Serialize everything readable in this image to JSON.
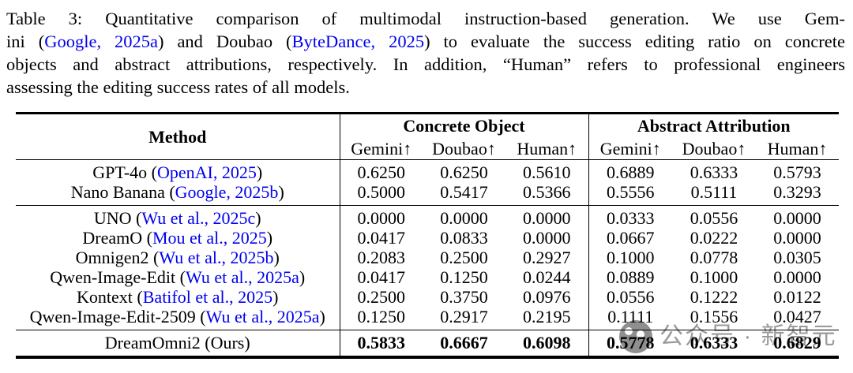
{
  "caption": {
    "lines": [
      {
        "runs": [
          {
            "t": "Table 3:  Quantitative comparison of multimodal instruction-based generation.  We use Gem-"
          }
        ]
      },
      {
        "runs": [
          {
            "t": "ini ("
          },
          {
            "t": "Google, 2025a",
            "link": true
          },
          {
            "t": ") and Doubao ("
          },
          {
            "t": "ByteDance, 2025",
            "link": true
          },
          {
            "t": ") to evaluate the success editing ratio on concrete"
          }
        ]
      },
      {
        "runs": [
          {
            "t": "objects and abstract attributions, respectively. In addition, “Human” refers to professional engineers"
          }
        ]
      },
      {
        "runs": [
          {
            "t": "assessing the editing success rates of all models."
          }
        ]
      }
    ]
  },
  "table": {
    "corner_header": "Method",
    "group_headers": [
      "Concrete Object",
      "Abstract Attribution"
    ],
    "metric_headers": [
      "Gemini↑",
      "Doubao↑",
      "Human↑",
      "Gemini↑",
      "Doubao↑",
      "Human↑"
    ],
    "sections": [
      {
        "rows": [
          {
            "method": {
              "pre": "GPT-4o (",
              "cite": "OpenAI, 2025",
              "post": ")"
            },
            "values": [
              "0.6250",
              "0.6250",
              "0.5610",
              "0.6889",
              "0.6333",
              "0.5793"
            ],
            "bold": false
          },
          {
            "method": {
              "pre": "Nano Banana (",
              "cite": "Google, 2025b",
              "post": ")"
            },
            "values": [
              "0.5000",
              "0.5417",
              "0.5366",
              "0.5556",
              "0.5111",
              "0.3293"
            ],
            "bold": false
          }
        ]
      },
      {
        "rows": [
          {
            "method": {
              "pre": "UNO (",
              "cite": "Wu et al., 2025c",
              "post": ")"
            },
            "values": [
              "0.0000",
              "0.0000",
              "0.0000",
              "0.0333",
              "0.0556",
              "0.0000"
            ],
            "bold": false
          },
          {
            "method": {
              "pre": "DreamO (",
              "cite": "Mou et al., 2025",
              "post": ")"
            },
            "values": [
              "0.0417",
              "0.0833",
              "0.0000",
              "0.0667",
              "0.0222",
              "0.0000"
            ],
            "bold": false
          },
          {
            "method": {
              "pre": "Omnigen2 (",
              "cite": "Wu et al., 2025b",
              "post": ")"
            },
            "values": [
              "0.2083",
              "0.2500",
              "0.2927",
              "0.1000",
              "0.0778",
              "0.0305"
            ],
            "bold": false
          },
          {
            "method": {
              "pre": "Qwen-Image-Edit (",
              "cite": "Wu et al., 2025a",
              "post": ")"
            },
            "values": [
              "0.0417",
              "0.1250",
              "0.0244",
              "0.0889",
              "0.1000",
              "0.0000"
            ],
            "bold": false
          },
          {
            "method": {
              "pre": "Kontext (",
              "cite": "Batifol et al., 2025",
              "post": ")"
            },
            "values": [
              "0.2500",
              "0.3750",
              "0.0976",
              "0.0556",
              "0.1222",
              "0.0122"
            ],
            "bold": false
          },
          {
            "method": {
              "pre": "Qwen-Image-Edit-2509 (",
              "cite": "Wu et al., 2025a",
              "post": ")"
            },
            "values": [
              "0.1250",
              "0.2917",
              "0.2195",
              "0.1111",
              "0.1556",
              "0.0427"
            ],
            "bold": false
          }
        ]
      },
      {
        "rows": [
          {
            "method": {
              "pre": "DreamOmni2 (Ours)",
              "cite": "",
              "post": ""
            },
            "values": [
              "0.5833",
              "0.6667",
              "0.6098",
              "0.5778",
              "0.6333",
              "0.6829"
            ],
            "bold": true
          }
        ]
      }
    ]
  },
  "watermark": {
    "text": "公众号 · 新智元"
  },
  "colors": {
    "link": "#0000EE",
    "text": "#000000",
    "watermark": "#9a9a9a"
  }
}
